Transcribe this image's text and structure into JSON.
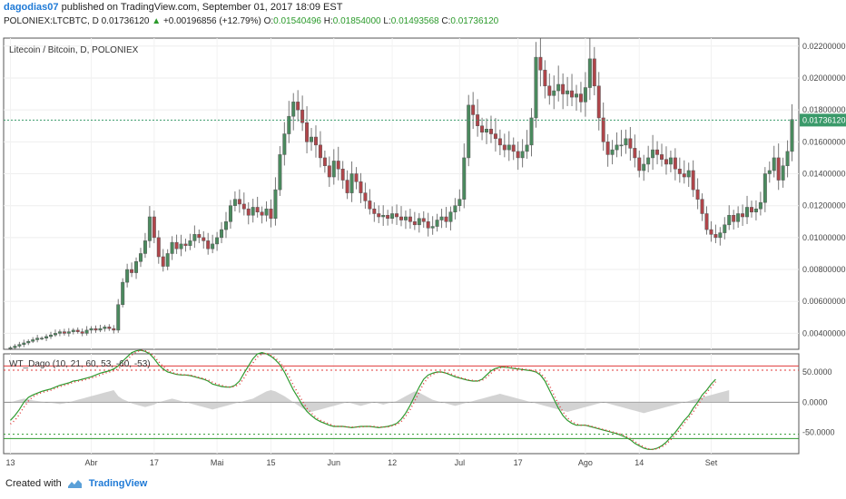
{
  "header": {
    "author": "dagodias07",
    "published_text": "published on TradingView.com, September 01, 2017 18:09 EST",
    "symbol_line": "POLONIEX:LTCBTC, D",
    "last": "0.01736120",
    "change_arrow": "▲",
    "change": "+0.00196856 (+12.79%)",
    "o_label": "O:",
    "o_value": "0.01540496",
    "h_label": "H:",
    "h_value": "0.01854000",
    "l_label": "L:",
    "l_value": "0.01493568",
    "c_label": "C:",
    "c_value": "0.01736120"
  },
  "pane_title": "Litecoin / Bitcoin, D, POLONIEX",
  "indicator_title": "WT_Dago (10, 21, 60, 53, -60, -53)",
  "price_badge": "0.01736120",
  "price_axis_labels": [
    "0.02200000",
    "0.02000000",
    "0.01800000",
    "0.01600000",
    "0.01400000",
    "0.01200000",
    "0.01000000",
    "0.00800000",
    "0.00600000",
    "0.00400000"
  ],
  "indicator_axis_labels": [
    "50.0000",
    "0.0000",
    "-50.0000"
  ],
  "time_axis_labels": [
    "13",
    "Abr",
    "17",
    "Mai",
    "15",
    "Jun",
    "12",
    "Jul",
    "17",
    "Ago",
    "14",
    "Set"
  ],
  "footer": {
    "created_with": "Created with",
    "brand": "TradingView"
  },
  "colors": {
    "up": "#4a8a5e",
    "down": "#b0454a",
    "wt1": "#2f9a2f",
    "wt2": "#e03a3a",
    "hist": "#c8c8c8",
    "last_price_line": "#3a9a6a",
    "badge": "#3a9a6a"
  },
  "chart_data": [
    {
      "type": "candlestick",
      "title": "Litecoin / Bitcoin, D, POLONIEX",
      "ylim": [
        0.003,
        0.0225
      ],
      "x_tick_labels": [
        "13",
        "Abr",
        "17",
        "Mai",
        "15",
        "Jun",
        "12",
        "Jul",
        "17",
        "Ago",
        "14",
        "Set"
      ],
      "y_tick_labels": [
        "0.02200000",
        "0.02000000",
        "0.01800000",
        "0.01600000",
        "0.01400000",
        "0.01200000",
        "0.01000000",
        "0.00800000",
        "0.00600000",
        "0.00400000"
      ],
      "close": [
        0.0031,
        0.0032,
        0.0033,
        0.0034,
        0.0035,
        0.0036,
        0.0037,
        0.0037,
        0.0038,
        0.0039,
        0.004,
        0.0041,
        0.004,
        0.0041,
        0.0042,
        0.0041,
        0.004,
        0.0042,
        0.0043,
        0.0042,
        0.0043,
        0.0044,
        0.0043,
        0.0042,
        0.0058,
        0.0072,
        0.008,
        0.0078,
        0.0085,
        0.009,
        0.0098,
        0.0113,
        0.01,
        0.0088,
        0.0082,
        0.009,
        0.0097,
        0.0093,
        0.0096,
        0.0095,
        0.0098,
        0.0102,
        0.01,
        0.0098,
        0.0093,
        0.0096,
        0.01,
        0.0105,
        0.011,
        0.012,
        0.0124,
        0.0121,
        0.0118,
        0.0114,
        0.0119,
        0.0116,
        0.0114,
        0.0118,
        0.0112,
        0.013,
        0.0152,
        0.0165,
        0.0176,
        0.0185,
        0.018,
        0.0172,
        0.016,
        0.0163,
        0.0158,
        0.015,
        0.0145,
        0.0138,
        0.0148,
        0.0143,
        0.0136,
        0.0128,
        0.014,
        0.0135,
        0.0128,
        0.0123,
        0.0118,
        0.0115,
        0.0113,
        0.0114,
        0.0112,
        0.0115,
        0.0113,
        0.0111,
        0.0113,
        0.011,
        0.0108,
        0.0112,
        0.011,
        0.0106,
        0.0107,
        0.0111,
        0.0113,
        0.011,
        0.0116,
        0.012,
        0.0124,
        0.015,
        0.0183,
        0.0177,
        0.017,
        0.0166,
        0.0168,
        0.0165,
        0.0162,
        0.0158,
        0.0155,
        0.0158,
        0.0154,
        0.015,
        0.0154,
        0.0158,
        0.0175,
        0.0213,
        0.0205,
        0.0195,
        0.0189,
        0.0192,
        0.0196,
        0.019,
        0.0192,
        0.0188,
        0.019,
        0.0185,
        0.0194,
        0.0212,
        0.0195,
        0.0175,
        0.016,
        0.0152,
        0.0155,
        0.0158,
        0.0158,
        0.0162,
        0.0156,
        0.015,
        0.0142,
        0.0146,
        0.015,
        0.0155,
        0.0152,
        0.0149,
        0.0146,
        0.015,
        0.0143,
        0.014,
        0.0138,
        0.0142,
        0.013,
        0.0124,
        0.0115,
        0.0105,
        0.0102,
        0.01,
        0.0103,
        0.0108,
        0.0114,
        0.011,
        0.0115,
        0.0113,
        0.0119,
        0.0116,
        0.0118,
        0.0122,
        0.014,
        0.0142,
        0.015,
        0.0136,
        0.0145,
        0.0154,
        0.0174
      ],
      "open_offset_note": "",
      "last_price": 0.0173612
    },
    {
      "type": "line",
      "title": "WT_Dago (10, 21, 60, 53, -60, -53)",
      "ylim": [
        -85,
        80
      ],
      "y_tick_labels": [
        "50.0000",
        "0.0000",
        "-50.0000"
      ],
      "levels": [
        60,
        53,
        -53,
        -60
      ],
      "series": [
        {
          "values": [
            -30,
            -22,
            -12,
            0,
            8,
            12,
            15,
            18,
            20,
            22,
            25,
            28,
            30,
            32,
            35,
            36,
            38,
            40,
            42,
            45,
            48,
            50,
            52,
            55,
            60,
            68,
            75,
            82,
            85,
            86,
            84,
            80,
            72,
            62,
            55,
            50,
            48,
            46,
            45,
            45,
            44,
            42,
            40,
            38,
            35,
            30,
            28,
            26,
            25,
            25,
            28,
            35,
            48,
            60,
            72,
            80,
            82,
            80,
            76,
            70,
            62,
            50,
            35,
            20,
            8,
            -5,
            -15,
            -22,
            -28,
            -32,
            -35,
            -38,
            -40,
            -40,
            -40,
            -41,
            -42,
            -41,
            -40,
            -40,
            -40,
            -41,
            -42,
            -41,
            -40,
            -38,
            -35,
            -28,
            -18,
            -5,
            10,
            25,
            38,
            45,
            48,
            50,
            50,
            48,
            45,
            42,
            40,
            38,
            36,
            35,
            35,
            38,
            45,
            52,
            56,
            58,
            58,
            57,
            56,
            55,
            54,
            53,
            52,
            50,
            45,
            35,
            20,
            5,
            -10,
            -22,
            -30,
            -35,
            -38,
            -38,
            -38,
            -40,
            -42,
            -44,
            -46,
            -48,
            -50,
            -52,
            -55,
            -58,
            -62,
            -68,
            -72,
            -76,
            -78,
            -78,
            -76,
            -72,
            -66,
            -58,
            -50,
            -40,
            -30,
            -22,
            -10,
            0,
            12,
            20,
            30,
            38
          ]
        },
        {
          "values": [
            -36,
            -30,
            -20,
            -8,
            2,
            9,
            13,
            16,
            18,
            20,
            23,
            26,
            28,
            30,
            33,
            35,
            36,
            38,
            40,
            42,
            45,
            48,
            50,
            52,
            55,
            62,
            70,
            78,
            83,
            86,
            85,
            82,
            76,
            67,
            59,
            53,
            49,
            47,
            46,
            45,
            45,
            43,
            41,
            39,
            37,
            33,
            30,
            28,
            26,
            25,
            26,
            30,
            40,
            53,
            65,
            75,
            80,
            81,
            78,
            73,
            66,
            56,
            43,
            28,
            15,
            2,
            -10,
            -18,
            -25,
            -30,
            -33,
            -36,
            -39,
            -40,
            -40,
            -41,
            -41,
            -41,
            -41,
            -40,
            -40,
            -40,
            -41,
            -41,
            -41,
            -39,
            -37,
            -32,
            -23,
            -12,
            2,
            17,
            31,
            41,
            46,
            49,
            50,
            49,
            47,
            44,
            41,
            39,
            37,
            36,
            35,
            36,
            41,
            48,
            54,
            57,
            58,
            58,
            57,
            56,
            55,
            54,
            53,
            51,
            48,
            40,
            28,
            12,
            -3,
            -16,
            -26,
            -32,
            -36,
            -38,
            -38,
            -39,
            -41,
            -43,
            -45,
            -47,
            -49,
            -51,
            -53,
            -56,
            -60,
            -65,
            -70,
            -74,
            -77,
            -78,
            -77,
            -74,
            -69,
            -62,
            -54,
            -45,
            -35,
            -26,
            -16,
            -5,
            6,
            16,
            25,
            34
          ]
        },
        {
          "values": [
            0,
            2,
            4,
            6,
            5,
            3,
            2,
            1,
            0,
            -1,
            -2,
            -3,
            -2,
            0,
            2,
            4,
            6,
            8,
            10,
            12,
            14,
            16,
            18,
            20,
            10,
            5,
            2,
            -2,
            -4,
            -6,
            -8,
            -6,
            -4,
            0,
            2,
            4,
            6,
            4,
            2,
            0,
            -2,
            -4,
            -6,
            -8,
            -10,
            -12,
            -10,
            -8,
            -6,
            -4,
            -2,
            0,
            2,
            4,
            6,
            10,
            14,
            18,
            20,
            18,
            14,
            10,
            5,
            0,
            -5,
            -10,
            -14,
            -16,
            -14,
            -12,
            -10,
            -8,
            -6,
            -4,
            -2,
            0,
            -2,
            -4,
            -6,
            -4,
            -2,
            0,
            -2,
            -4,
            -2,
            0,
            2,
            6,
            10,
            14,
            18,
            16,
            12,
            8,
            4,
            2,
            0,
            -2,
            -4,
            -6,
            -4,
            -2,
            0,
            2,
            4,
            6,
            8,
            10,
            12,
            14,
            12,
            10,
            8,
            6,
            4,
            2,
            0,
            -2,
            -4,
            -6,
            -8,
            -10,
            -12,
            -14,
            -16,
            -14,
            -12,
            -10,
            -8,
            -6,
            -4,
            -2,
            0,
            -2,
            -4,
            -6,
            -8,
            -10,
            -12,
            -14,
            -16,
            -18,
            -16,
            -14,
            -12,
            -10,
            -8,
            -6,
            -4,
            -2,
            0,
            2,
            4,
            6,
            8,
            10,
            12,
            14,
            16,
            18,
            20
          ]
        }
      ]
    }
  ]
}
